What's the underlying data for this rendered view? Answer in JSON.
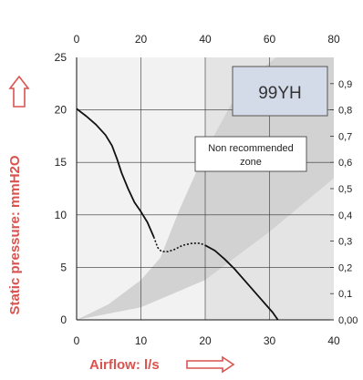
{
  "chart_data": {
    "type": "line",
    "title": "",
    "model_label": "99YH",
    "zone_label_line1": "Non recommended",
    "zone_label_line2": "zone",
    "xlabel": "Airflow: l/s",
    "ylabel": "Static pressure: mmH2O",
    "xlim": [
      0,
      40
    ],
    "ylim": [
      0,
      25
    ],
    "x_ticks": [
      0,
      10,
      20,
      30,
      40
    ],
    "y_ticks": [
      0,
      5,
      10,
      15,
      20,
      25
    ],
    "top_axis": {
      "ticks": [
        0,
        20,
        40,
        60,
        80
      ],
      "range": [
        0,
        80
      ]
    },
    "right_axis": {
      "ticks": [
        "0,00",
        "0,1",
        "0,2",
        "0,3",
        "0,4",
        "0,5",
        "0,6",
        "0,7",
        "0,8",
        "0,9"
      ],
      "values": [
        0.0,
        0.1,
        0.2,
        0.3,
        0.4,
        0.5,
        0.6,
        0.7,
        0.8,
        0.9
      ],
      "range": [
        0,
        1.0
      ]
    },
    "grid": true,
    "series": [
      {
        "style": "solid",
        "color": "#111111",
        "points": [
          [
            0,
            20.1
          ],
          [
            1.5,
            19.4
          ],
          [
            3,
            18.6
          ],
          [
            4.5,
            17.6
          ],
          [
            5.5,
            16.6
          ],
          [
            6.3,
            15.3
          ],
          [
            7,
            14.0
          ],
          [
            8,
            12.5
          ],
          [
            9,
            11.2
          ],
          [
            10,
            10.3
          ],
          [
            11,
            9.3
          ],
          [
            12,
            7.9
          ]
        ]
      },
      {
        "style": "dotted",
        "color": "#111111",
        "points": [
          [
            12,
            7.9
          ],
          [
            12.6,
            6.9
          ],
          [
            13.2,
            6.5
          ],
          [
            14.2,
            6.5
          ],
          [
            15.2,
            6.7
          ],
          [
            16.5,
            7.1
          ],
          [
            18,
            7.3
          ],
          [
            19.2,
            7.3
          ],
          [
            20,
            7.1
          ]
        ]
      },
      {
        "style": "solid",
        "color": "#111111",
        "points": [
          [
            20,
            7.1
          ],
          [
            21.5,
            6.6
          ],
          [
            23,
            5.8
          ],
          [
            24.5,
            4.9
          ],
          [
            26.5,
            3.5
          ],
          [
            28.5,
            2.1
          ],
          [
            30.5,
            0.7
          ],
          [
            31.3,
            0
          ]
        ]
      }
    ],
    "zone": {
      "fill": "#d2d2d2",
      "upper_boundary": [
        [
          0,
          0
        ],
        [
          5,
          1.5
        ],
        [
          10,
          3.8
        ],
        [
          13,
          5.9
        ],
        [
          16,
          10.5
        ],
        [
          20,
          16
        ],
        [
          24,
          20.5
        ],
        [
          29,
          24
        ],
        [
          31,
          25
        ]
      ],
      "lower_boundary": [
        [
          0,
          0
        ],
        [
          10,
          1.2
        ],
        [
          20,
          3.8
        ],
        [
          30,
          8.4
        ],
        [
          40,
          13.5
        ]
      ]
    },
    "region_background": {
      "x_from": 20,
      "x_to": 40,
      "fill": "#e4e4e4"
    },
    "plot_background": "#f2f2f2",
    "axis_title_color": "#d9534f"
  }
}
